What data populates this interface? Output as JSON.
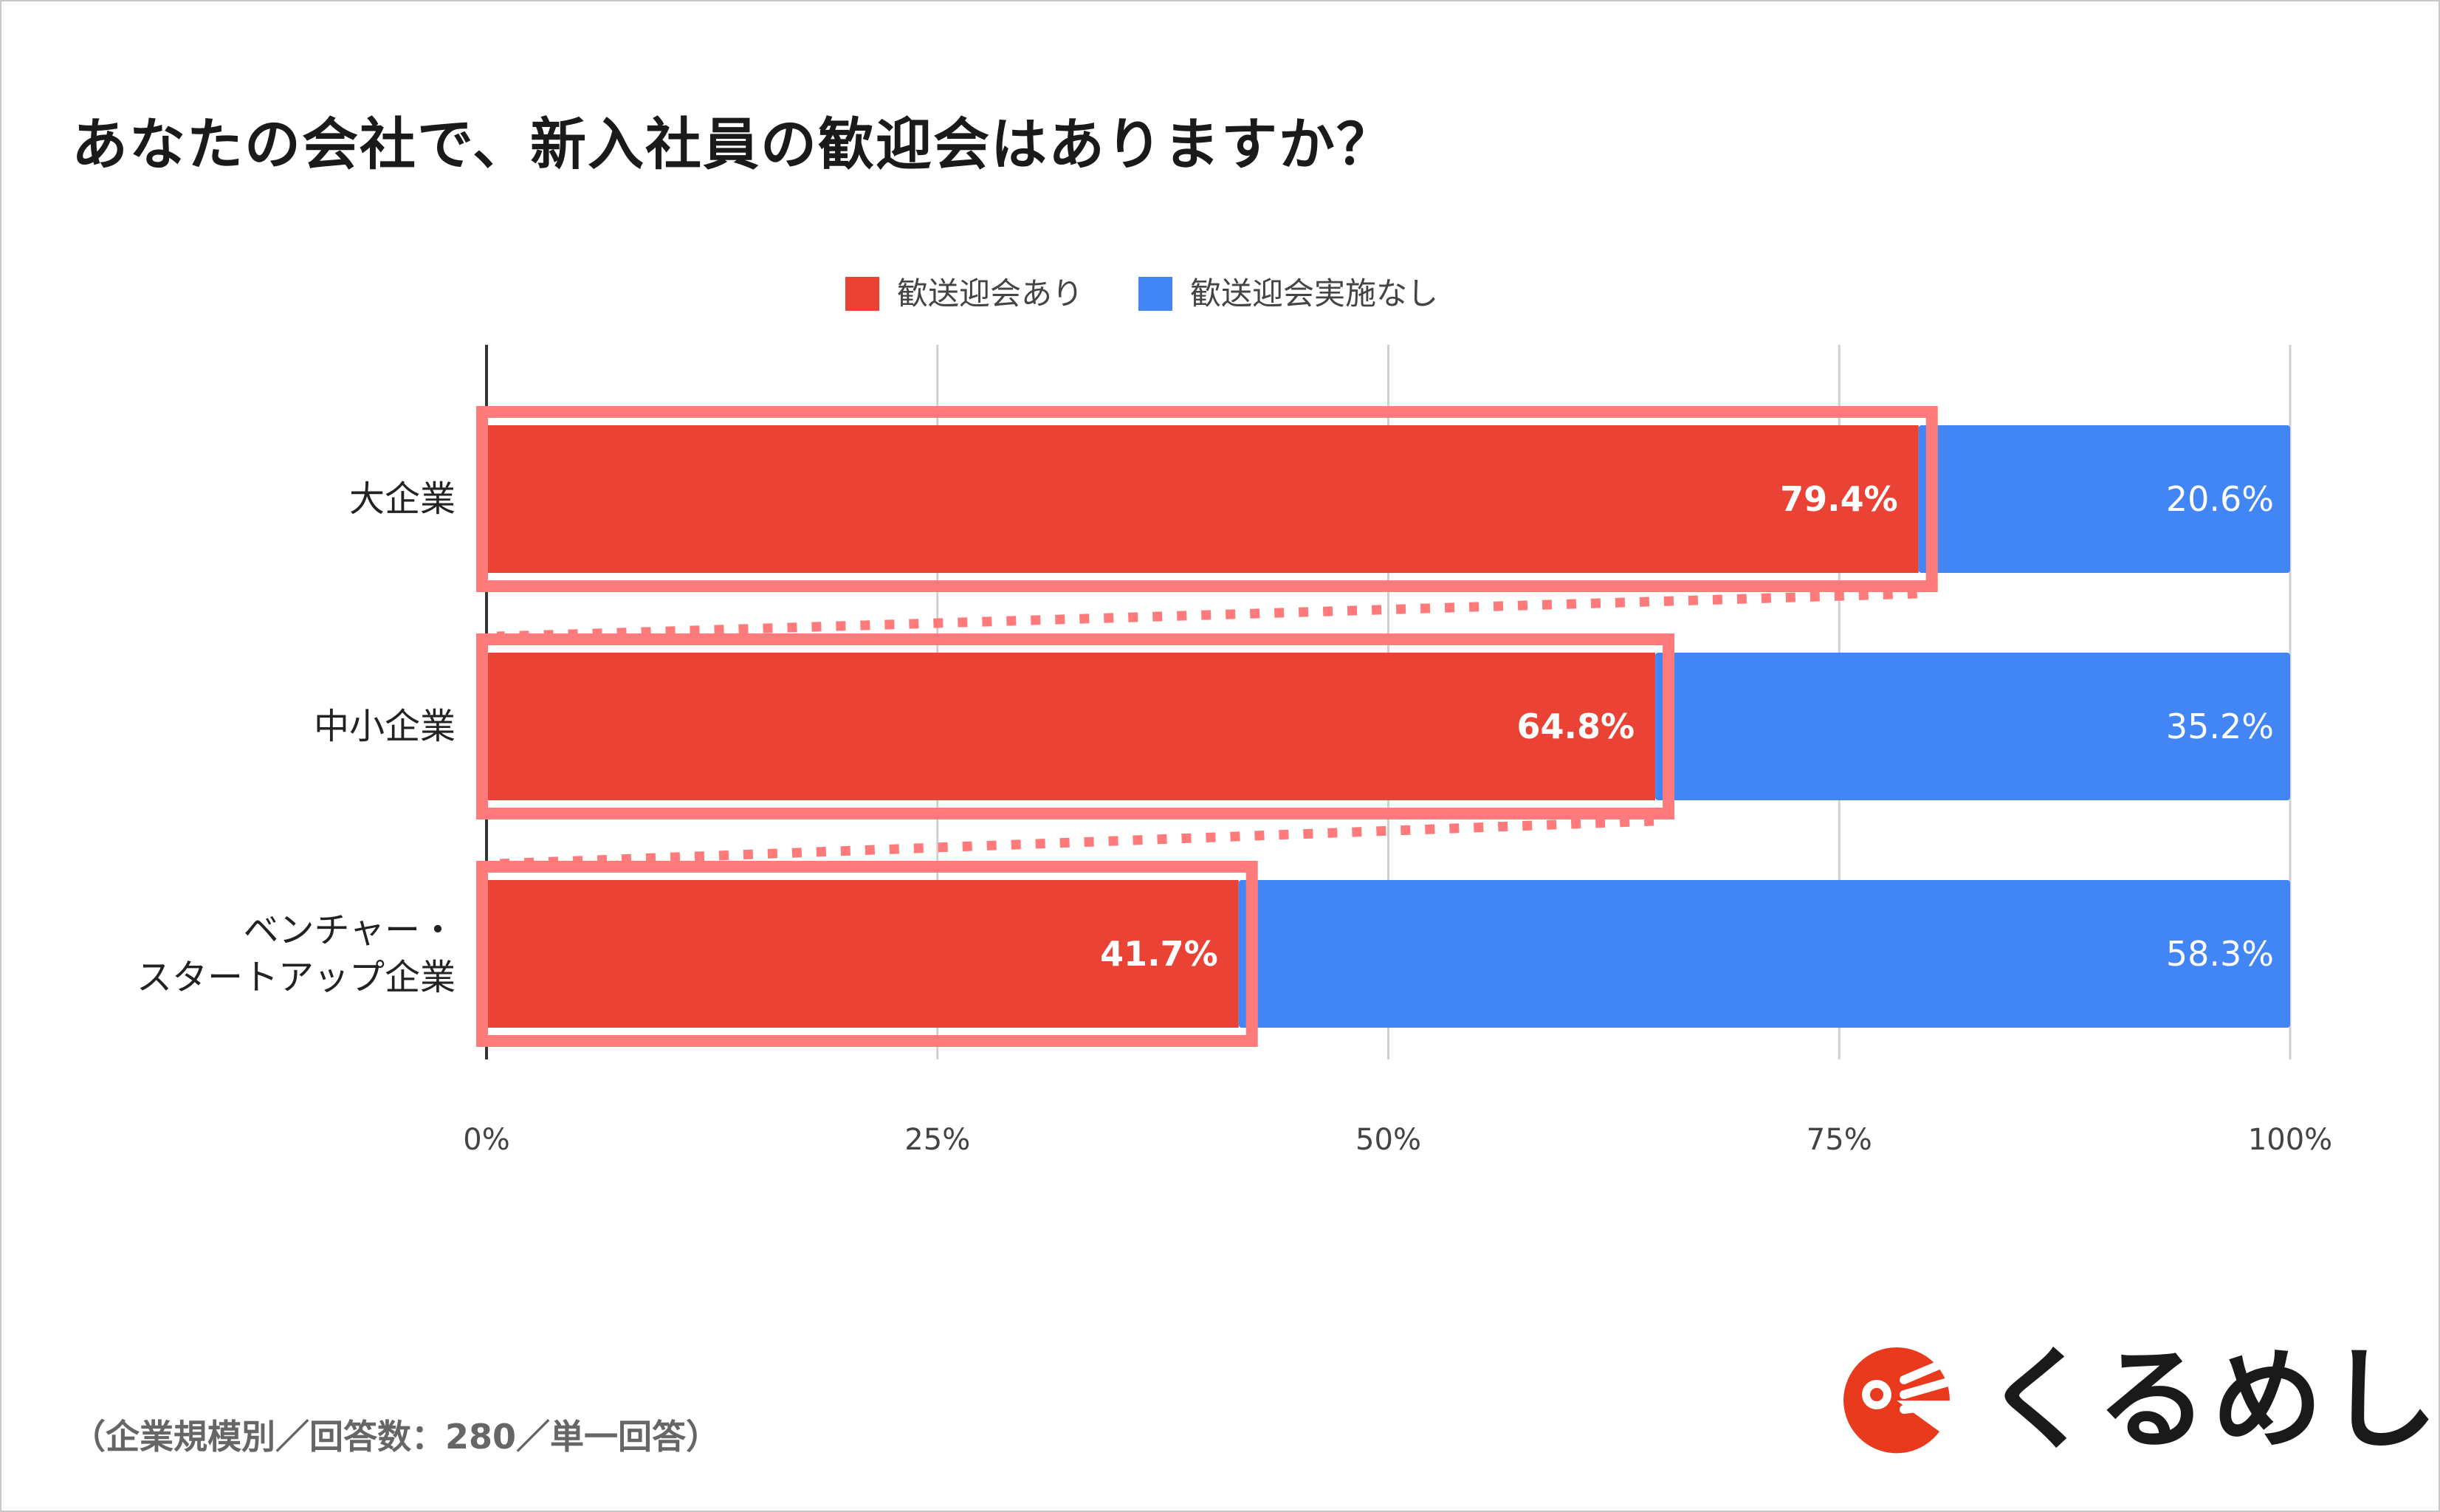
{
  "chart_data": {
    "type": "bar",
    "orientation": "horizontal",
    "stacked": true,
    "title": "あなたの会社で、新入社員の歓迎会はありますか？",
    "categories": [
      "大企業",
      "中小企業",
      "ベンチャー・\nスタートアップ企業"
    ],
    "series": [
      {
        "name": "歓送迎会あり",
        "color": "#EA4335",
        "values": [
          79.4,
          64.8,
          41.7
        ],
        "labels": [
          "79.4%",
          "64.8%",
          "41.7%"
        ]
      },
      {
        "name": "歓送迎会実施なし",
        "color": "#4285F4",
        "values": [
          20.6,
          35.2,
          58.3
        ],
        "labels": [
          "20.6%",
          "35.2%",
          "58.3%"
        ]
      }
    ],
    "x_ticks": [
      "0%",
      "25%",
      "50%",
      "75%",
      "100%"
    ],
    "xlim": [
      0,
      100
    ],
    "grid": true,
    "legend_position": "top-center",
    "highlight_color": "#FF7B7B",
    "highlight_series": "歓送迎会あり"
  },
  "footnote": "（企業規模別／回答数：280／単一回答）",
  "brand": {
    "name": "くるめし",
    "color": "#EA3A1E"
  }
}
